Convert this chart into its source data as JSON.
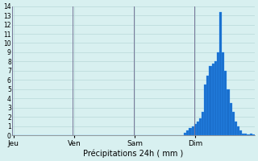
{
  "xlabel": "Précipitations 24h ( mm )",
  "background_color": "#d8f0f0",
  "bar_color": "#1a6fcc",
  "bar_edge_color": "#3399ff",
  "ylim": [
    0,
    14
  ],
  "yticks": [
    0,
    1,
    2,
    3,
    4,
    5,
    6,
    7,
    8,
    9,
    10,
    11,
    12,
    13,
    14
  ],
  "grid_color": "#b8d8d8",
  "day_labels": [
    "Jeu",
    "Ven",
    "Sam",
    "Dim"
  ],
  "n_bars": 96,
  "values": [
    0,
    0,
    0,
    0,
    0,
    0,
    0,
    0,
    0,
    0,
    0,
    0,
    0,
    0,
    0,
    0,
    0,
    0,
    0,
    0,
    0,
    0,
    0,
    0,
    0,
    0,
    0,
    0,
    0,
    0,
    0,
    0,
    0,
    0,
    0,
    0,
    0,
    0,
    0,
    0,
    0,
    0,
    0,
    0,
    0,
    0,
    0,
    0,
    0,
    0,
    0,
    0,
    0,
    0,
    0,
    0,
    0,
    0,
    0,
    0,
    0,
    0,
    0,
    0,
    0,
    0,
    0,
    0,
    0.3,
    0.5,
    0.8,
    1.0,
    1.2,
    1.5,
    1.8,
    2.5,
    5.5,
    6.5,
    7.5,
    7.8,
    8.0,
    9.0,
    13.4,
    9.0,
    7.0,
    5.0,
    3.5,
    2.5,
    1.5,
    1.0,
    0.5,
    0.2,
    0.15,
    0.1,
    0.15,
    0.1
  ]
}
